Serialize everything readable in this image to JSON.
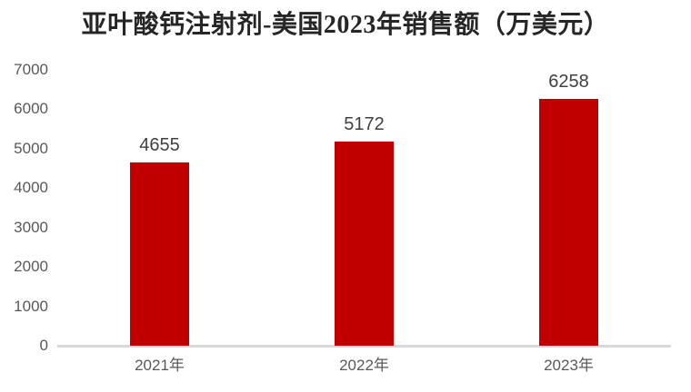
{
  "chart_data": {
    "type": "bar",
    "title": "亚叶酸钙注射剂-美国2023年销售额（万美元）",
    "categories": [
      "2021年",
      "2022年",
      "2023年"
    ],
    "values": [
      4655,
      5172,
      6258
    ],
    "data_labels": [
      "4655",
      "5172",
      "6258"
    ],
    "xlabel": "",
    "ylabel": "",
    "ylim": [
      0,
      7000
    ],
    "ytick_interval": 1000,
    "ytick_labels": [
      "0",
      "1000",
      "2000",
      "3000",
      "4000",
      "5000",
      "6000",
      "7000"
    ],
    "grid": false,
    "legend_position": "none",
    "colors": {
      "bar": "#c00000",
      "axis_line": "#d9d9d9",
      "axis_labels": "#595959",
      "data_labels": "#404040",
      "title": "#262626",
      "background": "#ffffff"
    }
  }
}
